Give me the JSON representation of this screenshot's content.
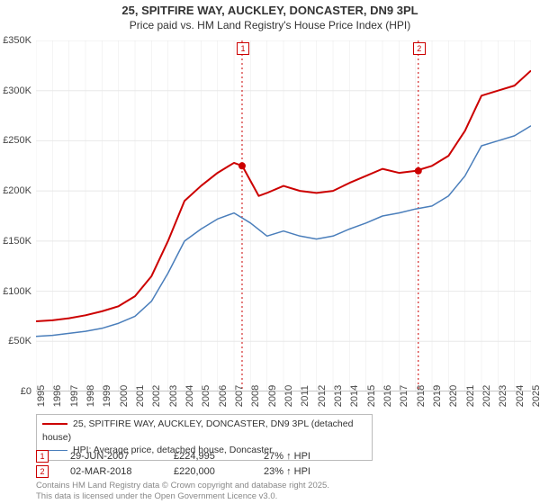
{
  "title": "25, SPITFIRE WAY, AUCKLEY, DONCASTER, DN9 3PL",
  "subtitle": "Price paid vs. HM Land Registry's House Price Index (HPI)",
  "chart": {
    "type": "line",
    "background_color": "#ffffff",
    "grid_color": "#e8e8e8",
    "x_axis": {
      "min": 1995,
      "max": 2025,
      "ticks": [
        1995,
        1996,
        1997,
        1998,
        1999,
        2000,
        2001,
        2002,
        2003,
        2004,
        2005,
        2006,
        2007,
        2008,
        2009,
        2010,
        2011,
        2012,
        2013,
        2014,
        2015,
        2016,
        2017,
        2018,
        2019,
        2020,
        2021,
        2022,
        2023,
        2024,
        2025
      ]
    },
    "y_axis": {
      "min": 0,
      "max": 350000,
      "tick_step": 50000,
      "tick_labels": [
        "£0",
        "£50K",
        "£100K",
        "£150K",
        "£200K",
        "£250K",
        "£300K",
        "£350K"
      ]
    },
    "series": [
      {
        "name": "price_paid",
        "label": "25, SPITFIRE WAY, AUCKLEY, DONCASTER, DN9 3PL (detached house)",
        "color": "#cc0000",
        "line_width": 2,
        "data": [
          [
            1995,
            70000
          ],
          [
            1996,
            71000
          ],
          [
            1997,
            73000
          ],
          [
            1998,
            76000
          ],
          [
            1999,
            80000
          ],
          [
            2000,
            85000
          ],
          [
            2001,
            95000
          ],
          [
            2002,
            115000
          ],
          [
            2003,
            150000
          ],
          [
            2004,
            190000
          ],
          [
            2005,
            205000
          ],
          [
            2006,
            218000
          ],
          [
            2007,
            228000
          ],
          [
            2007.5,
            224995
          ],
          [
            2008,
            210000
          ],
          [
            2008.5,
            195000
          ],
          [
            2009,
            198000
          ],
          [
            2010,
            205000
          ],
          [
            2011,
            200000
          ],
          [
            2012,
            198000
          ],
          [
            2013,
            200000
          ],
          [
            2014,
            208000
          ],
          [
            2015,
            215000
          ],
          [
            2016,
            222000
          ],
          [
            2017,
            218000
          ],
          [
            2018,
            220000
          ],
          [
            2019,
            225000
          ],
          [
            2020,
            235000
          ],
          [
            2021,
            260000
          ],
          [
            2022,
            295000
          ],
          [
            2023,
            300000
          ],
          [
            2024,
            305000
          ],
          [
            2025,
            320000
          ]
        ]
      },
      {
        "name": "hpi",
        "label": "HPI: Average price, detached house, Doncaster",
        "color": "#4a7ebb",
        "line_width": 1.5,
        "data": [
          [
            1995,
            55000
          ],
          [
            1996,
            56000
          ],
          [
            1997,
            58000
          ],
          [
            1998,
            60000
          ],
          [
            1999,
            63000
          ],
          [
            2000,
            68000
          ],
          [
            2001,
            75000
          ],
          [
            2002,
            90000
          ],
          [
            2003,
            118000
          ],
          [
            2004,
            150000
          ],
          [
            2005,
            162000
          ],
          [
            2006,
            172000
          ],
          [
            2007,
            178000
          ],
          [
            2008,
            168000
          ],
          [
            2009,
            155000
          ],
          [
            2010,
            160000
          ],
          [
            2011,
            155000
          ],
          [
            2012,
            152000
          ],
          [
            2013,
            155000
          ],
          [
            2014,
            162000
          ],
          [
            2015,
            168000
          ],
          [
            2016,
            175000
          ],
          [
            2017,
            178000
          ],
          [
            2018,
            182000
          ],
          [
            2019,
            185000
          ],
          [
            2020,
            195000
          ],
          [
            2021,
            215000
          ],
          [
            2022,
            245000
          ],
          [
            2023,
            250000
          ],
          [
            2024,
            255000
          ],
          [
            2025,
            265000
          ]
        ]
      }
    ],
    "sale_markers": [
      {
        "n": "1",
        "year": 2007.49,
        "price": 224995,
        "vline_color": "#cc0000",
        "dot_color": "#cc0000"
      },
      {
        "n": "2",
        "year": 2018.17,
        "price": 220000,
        "vline_color": "#cc0000",
        "dot_color": "#cc0000"
      }
    ]
  },
  "sales": [
    {
      "n": "1",
      "date": "29-JUN-2007",
      "price": "£224,995",
      "vs_hpi": "27% ↑ HPI"
    },
    {
      "n": "2",
      "date": "02-MAR-2018",
      "price": "£220,000",
      "vs_hpi": "23% ↑ HPI"
    }
  ],
  "attribution_line1": "Contains HM Land Registry data © Crown copyright and database right 2025.",
  "attribution_line2": "This data is licensed under the Open Government Licence v3.0."
}
